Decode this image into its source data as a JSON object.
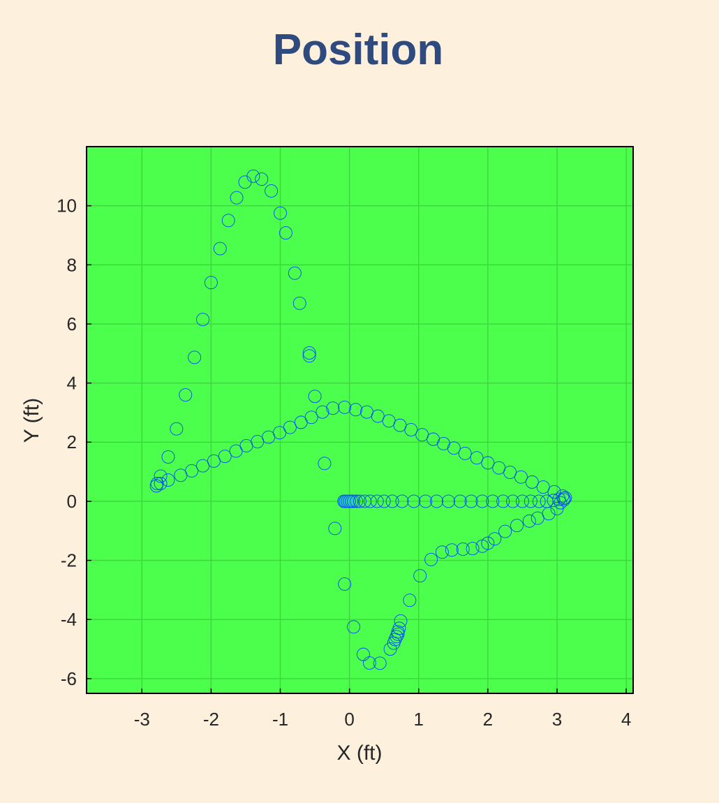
{
  "chart_data": {
    "type": "scatter",
    "title": "Position",
    "xlabel": "X (ft)",
    "ylabel": "Y (ft)",
    "xlim": [
      -3.8,
      4.1
    ],
    "ylim": [
      -6.5,
      12.0
    ],
    "xticks": [
      -3,
      -2,
      -1,
      0,
      1,
      2,
      3,
      4
    ],
    "yticks": [
      -6,
      -4,
      -2,
      0,
      2,
      4,
      6,
      8,
      10
    ],
    "grid": true,
    "marker": "open-circle",
    "colors": {
      "background": "#fdf0dc",
      "plot_area": "#4cff4c",
      "title": "#2e4a7e",
      "marker_edge": "#0047ff",
      "marker_start_fill": "#2ed1b0",
      "grid": "#3ed83e"
    },
    "series": [
      {
        "points": [
          [
            -0.08,
            0.0
          ],
          [
            -0.06,
            0.0
          ],
          [
            -0.03,
            0.0
          ],
          [
            0.0,
            0.0
          ],
          [
            0.03,
            0.0
          ],
          [
            0.06,
            0.0
          ],
          [
            0.1,
            0.0
          ],
          [
            0.15,
            0.0
          ],
          [
            0.22,
            0.0
          ],
          [
            0.3,
            0.0
          ],
          [
            0.4,
            0.0
          ],
          [
            0.5,
            0.0
          ],
          [
            0.62,
            0.0
          ],
          [
            0.76,
            0.0
          ],
          [
            0.93,
            0.0
          ],
          [
            1.1,
            0.0
          ],
          [
            1.26,
            0.0
          ],
          [
            1.43,
            0.0
          ],
          [
            1.6,
            0.0
          ],
          [
            1.76,
            0.0
          ],
          [
            1.92,
            0.0
          ],
          [
            2.07,
            0.0
          ],
          [
            2.22,
            0.0
          ],
          [
            2.36,
            0.0
          ],
          [
            2.5,
            0.0
          ],
          [
            2.62,
            0.0
          ],
          [
            2.74,
            0.0
          ],
          [
            2.85,
            0.0
          ],
          [
            2.95,
            0.03
          ],
          [
            3.03,
            0.07
          ],
          [
            3.1,
            0.1
          ],
          [
            3.12,
            0.12
          ],
          [
            3.1,
            0.05
          ],
          [
            3.05,
            -0.05
          ],
          [
            3.0,
            -0.25
          ],
          [
            2.88,
            -0.42
          ],
          [
            2.72,
            -0.57
          ],
          [
            2.6,
            -0.67
          ],
          [
            2.42,
            -0.82
          ],
          [
            2.25,
            -1.02
          ],
          [
            2.1,
            -1.27
          ],
          [
            2.0,
            -1.42
          ],
          [
            1.92,
            -1.52
          ],
          [
            1.78,
            -1.6
          ],
          [
            1.64,
            -1.62
          ],
          [
            1.48,
            -1.65
          ],
          [
            1.34,
            -1.72
          ],
          [
            1.18,
            -1.97
          ],
          [
            1.02,
            -2.52
          ],
          [
            0.87,
            -3.35
          ],
          [
            0.74,
            -4.05
          ],
          [
            0.72,
            -4.3
          ],
          [
            0.7,
            -4.42
          ],
          [
            0.7,
            -4.5
          ],
          [
            0.68,
            -4.58
          ],
          [
            0.66,
            -4.68
          ],
          [
            0.64,
            -4.8
          ],
          [
            0.59,
            -5.0
          ],
          [
            0.44,
            -5.48
          ],
          [
            0.29,
            -5.47
          ],
          [
            0.2,
            -5.18
          ],
          [
            0.06,
            -4.25
          ],
          [
            -0.07,
            -2.8
          ],
          [
            -0.21,
            -0.92
          ],
          [
            -0.36,
            1.28
          ],
          [
            -0.5,
            3.55
          ],
          [
            -0.58,
            4.92
          ],
          [
            -0.58,
            5.02
          ],
          [
            -0.72,
            6.7
          ],
          [
            -0.79,
            7.72
          ],
          [
            -0.92,
            9.08
          ],
          [
            -1.0,
            9.75
          ],
          [
            -1.13,
            10.5
          ],
          [
            -1.27,
            10.9
          ],
          [
            -1.39,
            11.0
          ],
          [
            -1.51,
            10.8
          ],
          [
            -1.63,
            10.27
          ],
          [
            -1.75,
            9.5
          ],
          [
            -1.87,
            8.55
          ],
          [
            -2.0,
            7.4
          ],
          [
            -2.12,
            6.15
          ],
          [
            -2.24,
            4.87
          ],
          [
            -2.37,
            3.6
          ],
          [
            -2.5,
            2.45
          ],
          [
            -2.62,
            1.5
          ],
          [
            -2.73,
            0.85
          ],
          [
            -2.78,
            0.6
          ],
          [
            -2.79,
            0.52
          ],
          [
            -2.73,
            0.6
          ],
          [
            -2.62,
            0.72
          ],
          [
            -2.44,
            0.88
          ],
          [
            -2.28,
            1.03
          ],
          [
            -2.12,
            1.2
          ],
          [
            -1.96,
            1.36
          ],
          [
            -1.8,
            1.52
          ],
          [
            -1.64,
            1.7
          ],
          [
            -1.49,
            1.88
          ],
          [
            -1.33,
            2.02
          ],
          [
            -1.17,
            2.17
          ],
          [
            -1.01,
            2.32
          ],
          [
            -0.86,
            2.5
          ],
          [
            -0.7,
            2.67
          ],
          [
            -0.55,
            2.84
          ],
          [
            -0.39,
            3.02
          ],
          [
            -0.24,
            3.15
          ],
          [
            -0.07,
            3.18
          ],
          [
            0.09,
            3.1
          ],
          [
            0.25,
            3.02
          ],
          [
            0.41,
            2.88
          ],
          [
            0.57,
            2.72
          ],
          [
            0.73,
            2.57
          ],
          [
            0.89,
            2.42
          ],
          [
            1.05,
            2.25
          ],
          [
            1.21,
            2.1
          ],
          [
            1.36,
            1.95
          ],
          [
            1.51,
            1.8
          ],
          [
            1.67,
            1.62
          ],
          [
            1.84,
            1.47
          ],
          [
            2.0,
            1.3
          ],
          [
            2.16,
            1.13
          ],
          [
            2.32,
            0.98
          ],
          [
            2.48,
            0.82
          ],
          [
            2.64,
            0.65
          ],
          [
            2.8,
            0.48
          ],
          [
            2.96,
            0.32
          ],
          [
            3.08,
            0.18
          ]
        ]
      }
    ]
  }
}
